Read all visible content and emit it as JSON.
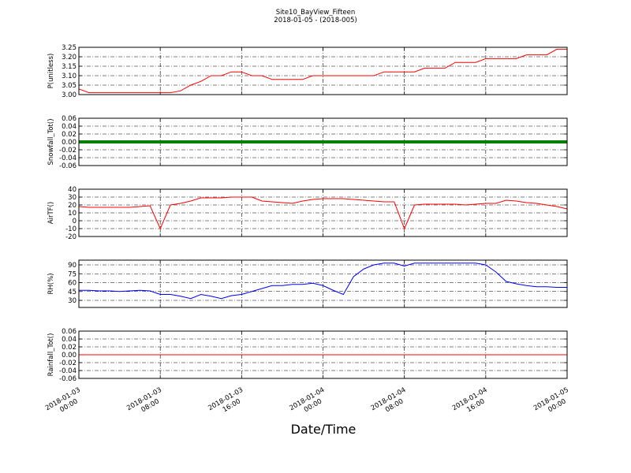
{
  "title": "Site10_BayView_Fifteen",
  "subtitle": "2018-01-05 - (2018-005)",
  "xlabel": "Date/Time",
  "xlim": [
    "2018-01-03 00:00",
    "2018-01-05 00:00"
  ],
  "xticks": [
    {
      "value": "2018-01-03 00:00",
      "label": [
        "2018-01-03",
        "00:00"
      ]
    },
    {
      "value": "2018-01-03 08:00",
      "label": [
        "2018-01-03",
        "08:00"
      ]
    },
    {
      "value": "2018-01-03 16:00",
      "label": [
        "2018-01-03",
        "16:00"
      ]
    },
    {
      "value": "2018-01-04 00:00",
      "label": [
        "2018-01-04",
        "00:00"
      ]
    },
    {
      "value": "2018-01-04 08:00",
      "label": [
        "2018-01-04",
        "08:00"
      ]
    },
    {
      "value": "2018-01-04 16:00",
      "label": [
        "2018-01-04",
        "16:00"
      ]
    },
    {
      "value": "2018-01-05 00:00",
      "label": [
        "2018-01-05",
        "00:00"
      ]
    }
  ],
  "x": [
    "2018-01-03 00:00",
    "2018-01-03 01:00",
    "2018-01-03 02:00",
    "2018-01-03 03:00",
    "2018-01-03 04:00",
    "2018-01-03 05:00",
    "2018-01-03 06:00",
    "2018-01-03 07:00",
    "2018-01-03 08:00",
    "2018-01-03 09:00",
    "2018-01-03 10:00",
    "2018-01-03 11:00",
    "2018-01-03 12:00",
    "2018-01-03 13:00",
    "2018-01-03 14:00",
    "2018-01-03 15:00",
    "2018-01-03 16:00",
    "2018-01-03 17:00",
    "2018-01-03 18:00",
    "2018-01-03 19:00",
    "2018-01-03 20:00",
    "2018-01-03 21:00",
    "2018-01-03 22:00",
    "2018-01-03 23:00",
    "2018-01-04 00:00",
    "2018-01-04 01:00",
    "2018-01-04 02:00",
    "2018-01-04 03:00",
    "2018-01-04 04:00",
    "2018-01-04 05:00",
    "2018-01-04 06:00",
    "2018-01-04 07:00",
    "2018-01-04 08:00",
    "2018-01-04 09:00",
    "2018-01-04 10:00",
    "2018-01-04 11:00",
    "2018-01-04 12:00",
    "2018-01-04 13:00",
    "2018-01-04 14:00",
    "2018-01-04 15:00",
    "2018-01-04 16:00",
    "2018-01-04 17:00",
    "2018-01-04 18:00",
    "2018-01-04 19:00",
    "2018-01-04 20:00",
    "2018-01-04 21:00",
    "2018-01-04 22:00",
    "2018-01-04 23:00",
    "2018-01-05 00:00"
  ],
  "chart_data": [
    {
      "type": "line",
      "ylabel": "P(unitless)",
      "ylim": [
        3.0,
        3.25
      ],
      "grid": true,
      "yticks": [
        {
          "value": 3,
          "label": "3.00"
        },
        3.05,
        {
          "value": 3.1,
          "label": "3.10"
        },
        3.15,
        {
          "value": 3.2,
          "label": "3.20"
        },
        3.25
      ],
      "series": [
        {
          "name": "P",
          "color": "#ff0000",
          "width": 1,
          "values": [
            3.03,
            3.01,
            3.01,
            3.01,
            3.01,
            3.01,
            3.01,
            3.01,
            3.01,
            3.01,
            3.02,
            3.05,
            3.07,
            3.1,
            3.1,
            3.12,
            3.12,
            3.1,
            3.1,
            3.08,
            3.08,
            3.08,
            3.08,
            3.1,
            3.1,
            3.1,
            3.1,
            3.1,
            3.1,
            3.1,
            3.12,
            3.12,
            3.12,
            3.12,
            3.14,
            3.14,
            3.14,
            3.17,
            3.17,
            3.17,
            3.19,
            3.19,
            3.19,
            3.19,
            3.21,
            3.21,
            3.21,
            3.24,
            3.24
          ]
        }
      ]
    },
    {
      "type": "line",
      "ylabel": "Snowfall_Tot()",
      "ylim": [
        -0.06,
        0.06
      ],
      "grid": true,
      "yticks": [
        -0.06,
        -0.04,
        -0.02,
        {
          "value": 0,
          "label": "0.00"
        },
        0.02,
        0.04,
        0.06
      ],
      "series": [
        {
          "name": "Snowfall_Tot",
          "color": "#008000",
          "width": 4,
          "values": [
            0,
            0,
            0,
            0,
            0,
            0,
            0,
            0,
            0,
            0,
            0,
            0,
            0,
            0,
            0,
            0,
            0,
            0,
            0,
            0,
            0,
            0,
            0,
            0,
            0,
            0,
            0,
            0,
            0,
            0,
            0,
            0,
            0,
            0,
            0,
            0,
            0,
            0,
            0,
            0,
            0,
            0,
            0,
            0,
            0,
            0,
            0,
            0,
            0
          ]
        }
      ]
    },
    {
      "type": "line",
      "ylabel": "AirTF()",
      "ylim": [
        -20,
        40
      ],
      "grid": true,
      "yticks": [
        -20,
        -10,
        0,
        10,
        20,
        30,
        40
      ],
      "series": [
        {
          "name": "AirTF",
          "color": "#ff0000",
          "width": 1,
          "values": [
            18,
            17,
            17,
            17,
            17,
            17,
            18,
            19,
            -10,
            20,
            22,
            25,
            29,
            29,
            29,
            30,
            30,
            30,
            25,
            24,
            23,
            22,
            25,
            27,
            28,
            28,
            28,
            27,
            26,
            25,
            24,
            24,
            -10,
            20,
            21,
            21,
            21,
            21,
            20,
            21,
            22,
            22,
            26,
            25,
            23,
            22,
            20,
            18,
            15
          ]
        }
      ]
    },
    {
      "type": "line",
      "ylabel": "RH(%)",
      "ylim": [
        18,
        98
      ],
      "grid": true,
      "yticks": [
        30,
        45,
        60,
        75,
        90
      ],
      "series": [
        {
          "name": "RH",
          "color": "#0000ff",
          "width": 1,
          "values": [
            47,
            47,
            46,
            46,
            45,
            46,
            47,
            46,
            40,
            40,
            37,
            33,
            40,
            37,
            33,
            38,
            40,
            45,
            50,
            55,
            55,
            57,
            57,
            59,
            55,
            47,
            40,
            70,
            83,
            90,
            93,
            93,
            88,
            93,
            93,
            93,
            93,
            93,
            93,
            93,
            90,
            78,
            62,
            58,
            55,
            53,
            53,
            52,
            52
          ]
        }
      ]
    },
    {
      "type": "line",
      "ylabel": "Rainfall_Tot()",
      "ylim": [
        -0.06,
        0.06
      ],
      "grid": true,
      "yticks": [
        -0.06,
        -0.04,
        -0.02,
        {
          "value": 0,
          "label": "0.00"
        },
        0.02,
        0.04,
        0.06
      ],
      "series": [
        {
          "name": "Rainfall_Tot",
          "color": "#ff0000",
          "width": 1,
          "values": [
            0,
            0,
            0,
            0,
            0,
            0,
            0,
            0,
            0,
            0,
            0,
            0,
            0,
            0,
            0,
            0,
            0,
            0,
            0,
            0,
            0,
            0,
            0,
            0,
            0,
            0,
            0,
            0,
            0,
            0,
            0,
            0,
            0,
            0,
            0,
            0,
            0,
            0,
            0,
            0,
            0,
            0,
            0,
            0,
            0,
            0,
            0,
            0,
            0
          ]
        }
      ]
    }
  ]
}
